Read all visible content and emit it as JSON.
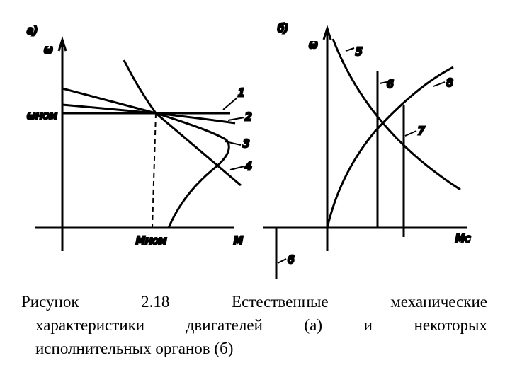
{
  "figure": {
    "panel_a": {
      "label": "а)",
      "y_axis": "ω",
      "omega_nom": "ωном",
      "curves": [
        "1",
        "2",
        "3",
        "4"
      ],
      "m_nom": "Мном",
      "x_axis": "М"
    },
    "panel_b": {
      "label": "б)",
      "y_axis": "ω",
      "curves": [
        "5",
        "6",
        "8",
        "7"
      ],
      "x_axis": "Мс",
      "lower_curve": "6"
    }
  },
  "caption": {
    "lines": [
      "Рисунок 2.18 Естественные механические",
      "характеристики двигателей (а) и некоторых",
      "исполнительных органов (б)"
    ]
  }
}
